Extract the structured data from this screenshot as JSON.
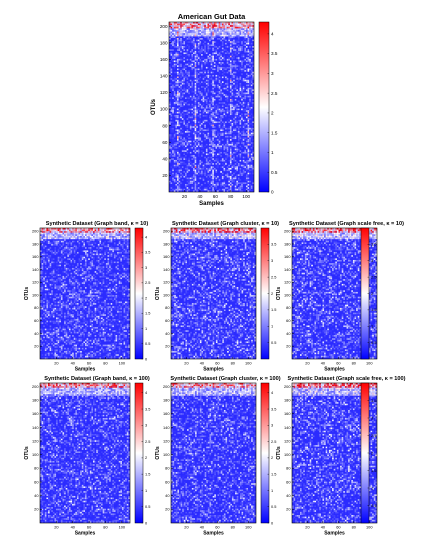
{
  "chart_data": [
    {
      "type": "heatmap",
      "title": "American Gut Data",
      "xlabel": "Samples",
      "ylabel": "OTUs",
      "xlim": [
        0,
        110
      ],
      "ylim": [
        0,
        205
      ],
      "xticks": [
        "20",
        "40",
        "60",
        "80",
        "100"
      ],
      "yticks": [
        "20",
        "40",
        "60",
        "80",
        "100",
        "120",
        "140",
        "160",
        "180",
        "200"
      ],
      "colorbar": {
        "min": 0,
        "max": 4.3,
        "ticks": [
          "0",
          "0.5",
          "1",
          "1.5",
          "2",
          "2.5",
          "3",
          "3.5",
          "4"
        ]
      }
    },
    {
      "type": "heatmap",
      "title": "Synthetic Dataset (Graph band, κ = 10)",
      "xlabel": "Samples",
      "ylabel": "OTUs",
      "xlim": [
        0,
        110
      ],
      "ylim": [
        0,
        205
      ],
      "xticks": [
        "20",
        "40",
        "60",
        "80",
        "100"
      ],
      "yticks": [
        "20",
        "40",
        "60",
        "80",
        "100",
        "120",
        "140",
        "160",
        "180",
        "200"
      ],
      "colorbar": {
        "min": 0,
        "max": 4.3,
        "ticks": [
          "0",
          "0.5",
          "1",
          "1.5",
          "2",
          "2.5",
          "3",
          "3.5",
          "4"
        ]
      }
    },
    {
      "type": "heatmap",
      "title": "Synthetic Dataset (Graph cluster, κ = 10)",
      "xlabel": "Samples",
      "ylabel": "OTUs",
      "xlim": [
        0,
        110
      ],
      "ylim": [
        0,
        205
      ],
      "xticks": [
        "20",
        "40",
        "60",
        "80",
        "100"
      ],
      "yticks": [
        "20",
        "40",
        "60",
        "80",
        "100",
        "120",
        "140",
        "160",
        "180",
        "200"
      ],
      "colorbar": {
        "min": 0,
        "max": 4,
        "ticks": [
          "0.5",
          "1",
          "1.5",
          "2",
          "2.5",
          "3",
          "3.5"
        ]
      }
    },
    {
      "type": "heatmap",
      "title": "Synthetic Dataset (Graph scale free, κ = 10)",
      "xlabel": "Samples",
      "ylabel": "OTUs",
      "xlim": [
        0,
        110
      ],
      "ylim": [
        0,
        205
      ],
      "xticks": [
        "20",
        "40",
        "60",
        "80",
        "100"
      ],
      "yticks": [
        "20",
        "40",
        "60",
        "80",
        "100",
        "120",
        "140",
        "160",
        "180",
        "200"
      ],
      "colorbar": {
        "min": 0,
        "max": 4,
        "ticks": [
          "0.5",
          "1",
          "1.5",
          "2",
          "2.5",
          "3",
          "3.5"
        ]
      }
    },
    {
      "type": "heatmap",
      "title": "Synthetic Dataset (Graph band, κ = 100)",
      "xlabel": "Samples",
      "ylabel": "OTUs",
      "xlim": [
        0,
        110
      ],
      "ylim": [
        0,
        205
      ],
      "xticks": [
        "20",
        "40",
        "60",
        "80",
        "100"
      ],
      "yticks": [
        "20",
        "40",
        "60",
        "80",
        "100",
        "120",
        "140",
        "160",
        "180",
        "200"
      ],
      "colorbar": {
        "min": 0,
        "max": 4.3,
        "ticks": [
          "0",
          "0.5",
          "1",
          "1.5",
          "2",
          "2.5",
          "3",
          "3.5",
          "4"
        ]
      }
    },
    {
      "type": "heatmap",
      "title": "Synthetic Dataset (Graph cluster, κ = 100)",
      "xlabel": "Samples",
      "ylabel": "OTUs",
      "xlim": [
        0,
        110
      ],
      "ylim": [
        0,
        205
      ],
      "xticks": [
        "20",
        "40",
        "60",
        "80",
        "100"
      ],
      "yticks": [
        "20",
        "40",
        "60",
        "80",
        "100",
        "120",
        "140",
        "160",
        "180",
        "200"
      ],
      "colorbar": {
        "min": 0,
        "max": 4.3,
        "ticks": [
          "0",
          "0.5",
          "1",
          "1.5",
          "2",
          "2.5",
          "3",
          "3.5",
          "4"
        ]
      }
    },
    {
      "type": "heatmap",
      "title": "Synthetic Dataset (Graph scale free, κ = 100)",
      "xlabel": "Samples",
      "ylabel": "OTUs",
      "xlim": [
        0,
        110
      ],
      "ylim": [
        0,
        205
      ],
      "xticks": [
        "20",
        "40",
        "60",
        "80",
        "100"
      ],
      "yticks": [
        "20",
        "40",
        "60",
        "80",
        "100",
        "120",
        "140",
        "160",
        "180",
        "200"
      ],
      "colorbar": {
        "min": 0,
        "max": 4,
        "ticks": [
          "0.5",
          "1",
          "1.5",
          "2",
          "2.5",
          "3",
          "3.5"
        ]
      }
    }
  ],
  "colors": {
    "low": "#0000ff",
    "mid": "#ffffff",
    "high": "#ff0000",
    "axis": "#000000"
  }
}
